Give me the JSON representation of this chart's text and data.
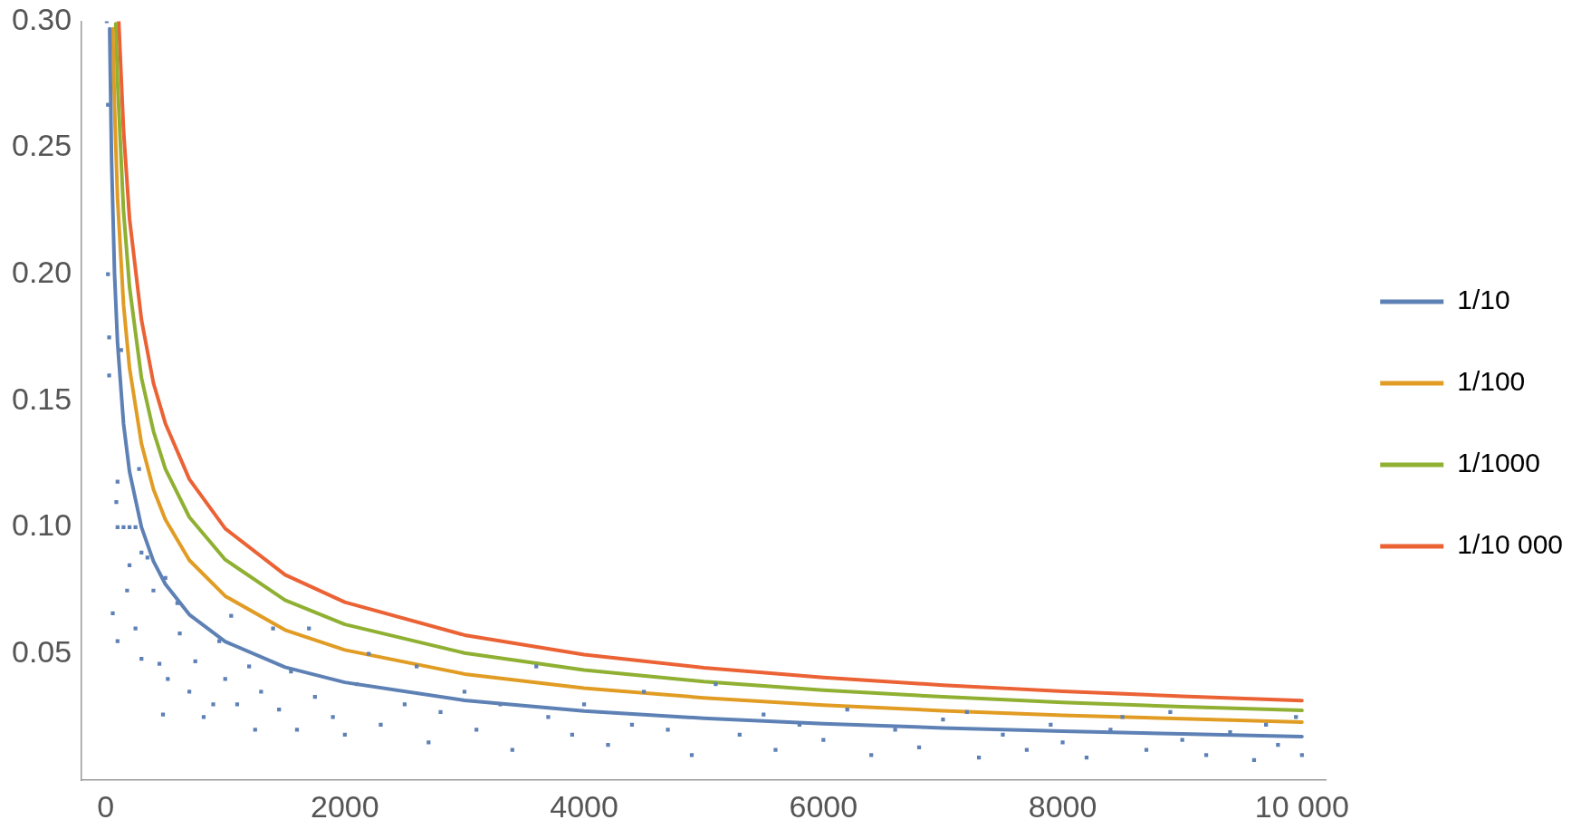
{
  "chart_data": {
    "type": "line",
    "xlim": [
      -200,
      10200
    ],
    "ylim": [
      0,
      0.3
    ],
    "xticks": [
      0,
      2000,
      4000,
      6000,
      8000,
      {
        "value": 10000,
        "label": "10 000"
      }
    ],
    "yticks": [
      0.05,
      {
        "value": 0.1,
        "label": "0.10"
      },
      0.15,
      {
        "value": 0.2,
        "label": "0.20"
      },
      0.25,
      {
        "value": 0.3,
        "label": "0.30"
      }
    ],
    "grid": false,
    "legend": "right",
    "line_style": "solid",
    "series": [
      {
        "type": "scatter",
        "marker": "square",
        "color": "#5e81b5",
        "x": [
          10,
          20,
          20,
          30,
          30,
          130,
          100,
          90,
          100,
          150,
          200,
          250,
          280,
          300,
          200,
          60,
          100,
          180,
          250,
          300,
          350,
          400,
          450,
          480,
          500,
          520,
          600,
          620,
          700,
          750,
          820,
          900,
          950,
          1000,
          1050,
          1100,
          1200,
          1250,
          1300,
          1400,
          1450,
          1550,
          1600,
          1700,
          1750,
          1900,
          2000,
          2100,
          2200,
          2300,
          2500,
          2600,
          2700,
          2800,
          3000,
          3100,
          3300,
          3400,
          3600,
          3700,
          3900,
          4000,
          4200,
          4400,
          4500,
          4700,
          4900,
          5100,
          5300,
          5500,
          5600,
          5800,
          6000,
          6200,
          6400,
          6600,
          6800,
          7000,
          7200,
          7300,
          7500,
          7700,
          7900,
          8000,
          8200,
          8400,
          8500,
          8700,
          8900,
          9000,
          9200,
          9400,
          9600,
          9700,
          9800,
          9950,
          10000
        ],
        "values": [
          0.3,
          0.267,
          0.2,
          0.175,
          0.16,
          0.17,
          0.118,
          0.11,
          0.1,
          0.1,
          0.1,
          0.1,
          0.123,
          0.09,
          0.085,
          0.066,
          0.055,
          0.075,
          0.06,
          0.048,
          0.088,
          0.075,
          0.046,
          0.026,
          0.08,
          0.04,
          0.07,
          0.058,
          0.035,
          0.047,
          0.025,
          0.03,
          0.055,
          0.04,
          0.065,
          0.03,
          0.045,
          0.02,
          0.035,
          0.06,
          0.028,
          0.043,
          0.02,
          0.06,
          0.033,
          0.025,
          0.018,
          0.038,
          0.05,
          0.022,
          0.03,
          0.045,
          0.015,
          0.027,
          0.035,
          0.02,
          0.03,
          0.012,
          0.045,
          0.025,
          0.018,
          0.03,
          0.014,
          0.022,
          0.035,
          0.02,
          0.01,
          0.038,
          0.018,
          0.026,
          0.012,
          0.022,
          0.016,
          0.028,
          0.01,
          0.02,
          0.013,
          0.024,
          0.027,
          0.009,
          0.018,
          0.012,
          0.022,
          0.015,
          0.009,
          0.02,
          0.025,
          0.012,
          0.027,
          0.016,
          0.01,
          0.019,
          0.008,
          0.022,
          0.014,
          0.025,
          0.01
        ]
      },
      {
        "name": "1/10",
        "color": "#5e81b5",
        "x": [
          34,
          50,
          75,
          100,
          150,
          200,
          300,
          400,
          500,
          700,
          1000,
          1500,
          2000,
          3000,
          4000,
          5000,
          6000,
          7000,
          8000,
          9000,
          10000
        ],
        "values": [
          0.297,
          0.245,
          0.2,
          0.173,
          0.141,
          0.122,
          0.1,
          0.0866,
          0.0775,
          0.0655,
          0.0548,
          0.0447,
          0.0387,
          0.0316,
          0.0274,
          0.0245,
          0.0224,
          0.0207,
          0.0194,
          0.0183,
          0.0173
        ]
      },
      {
        "name": "1/100",
        "color": "#e19c24",
        "x": [
          60,
          75,
          100,
          150,
          200,
          300,
          400,
          500,
          700,
          1000,
          1500,
          2000,
          3000,
          4000,
          5000,
          6000,
          7000,
          8000,
          9000,
          10000
        ],
        "values": [
          0.297,
          0.266,
          0.23,
          0.188,
          0.163,
          0.133,
          0.115,
          0.103,
          0.087,
          0.0728,
          0.0594,
          0.0515,
          0.042,
          0.0364,
          0.0326,
          0.0297,
          0.0275,
          0.0257,
          0.0243,
          0.023
        ]
      },
      {
        "name": "1/1000",
        "color": "#8fb032",
        "x": [
          85,
          100,
          150,
          200,
          300,
          400,
          500,
          700,
          1000,
          1500,
          2000,
          3000,
          4000,
          5000,
          6000,
          7000,
          8000,
          9000,
          10000
        ],
        "values": [
          0.299,
          0.276,
          0.225,
          0.195,
          0.159,
          0.138,
          0.123,
          0.104,
          0.0872,
          0.0712,
          0.0616,
          0.0503,
          0.0436,
          0.039,
          0.0356,
          0.033,
          0.0308,
          0.0291,
          0.0276
        ]
      },
      {
        "name": "1/10 000",
        "color": "#eb6235",
        "x": [
          110,
          150,
          200,
          300,
          400,
          500,
          700,
          1000,
          1500,
          2000,
          3000,
          4000,
          5000,
          6000,
          7000,
          8000,
          9000,
          10000
        ],
        "values": [
          0.3,
          0.257,
          0.222,
          0.182,
          0.157,
          0.141,
          0.119,
          0.0995,
          0.0812,
          0.0704,
          0.0574,
          0.0497,
          0.0445,
          0.0406,
          0.0376,
          0.0352,
          0.0332,
          0.0315
        ]
      }
    ]
  }
}
